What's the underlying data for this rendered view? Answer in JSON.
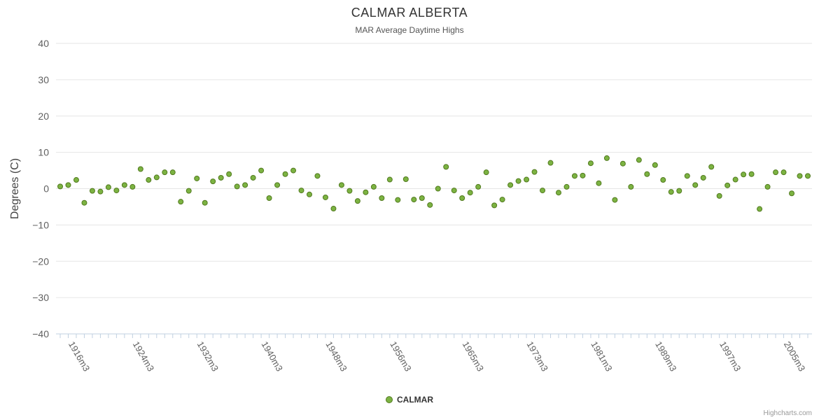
{
  "chart_data": {
    "type": "scatter",
    "title": "CALMAR ALBERTA",
    "subtitle": "MAR Average Daytime Highs",
    "ylabel": "Degrees (C)",
    "xlabel": "",
    "ylim": [
      -40,
      40
    ],
    "y_tick_step": 10,
    "grid": true,
    "legend_position": "bottom",
    "x_tick_labels": [
      {
        "year": 1916,
        "label": "1916m3"
      },
      {
        "year": 1924,
        "label": "1924m3"
      },
      {
        "year": 1932,
        "label": "1932m3"
      },
      {
        "year": 1940,
        "label": "1940m3"
      },
      {
        "year": 1948,
        "label": "1948m3"
      },
      {
        "year": 1956,
        "label": "1956m3"
      },
      {
        "year": 1965,
        "label": "1965m3"
      },
      {
        "year": 1973,
        "label": "1973m3"
      },
      {
        "year": 1981,
        "label": "1981m3"
      },
      {
        "year": 1989,
        "label": "1989m3"
      },
      {
        "year": 1997,
        "label": "1997m3"
      },
      {
        "year": 2005,
        "label": "2005m3"
      }
    ],
    "series": [
      {
        "name": "CALMAR",
        "color": "#7cb342",
        "border_color": "#527a1f",
        "years": [
          1915,
          1916,
          1917,
          1918,
          1919,
          1920,
          1921,
          1922,
          1923,
          1924,
          1925,
          1926,
          1927,
          1928,
          1929,
          1930,
          1931,
          1932,
          1933,
          1934,
          1935,
          1936,
          1937,
          1938,
          1939,
          1940,
          1941,
          1942,
          1943,
          1944,
          1945,
          1946,
          1947,
          1948,
          1949,
          1950,
          1951,
          1952,
          1953,
          1954,
          1955,
          1956,
          1957,
          1958,
          1959,
          1960,
          1961,
          1962,
          1963,
          1964,
          1965,
          1966,
          1967,
          1968,
          1969,
          1970,
          1971,
          1972,
          1973,
          1974,
          1975,
          1976,
          1977,
          1978,
          1979,
          1980,
          1981,
          1982,
          1983,
          1984,
          1985,
          1986,
          1987,
          1988,
          1989,
          1990,
          1991,
          1992,
          1993,
          1994,
          1995,
          1996,
          1997,
          1998,
          1999,
          2000,
          2001,
          2002,
          2003,
          2004,
          2005,
          2006,
          2007,
          2008
        ],
        "values": [
          0.6,
          1.0,
          2.4,
          -3.9,
          -0.6,
          -0.8,
          0.4,
          -0.5,
          1.0,
          0.5,
          5.4,
          2.4,
          3.1,
          4.5,
          4.5,
          -3.6,
          -0.6,
          2.8,
          -3.9,
          2.0,
          3.0,
          4.0,
          0.6,
          1.0,
          3.0,
          5.0,
          -2.6,
          1.0,
          4.0,
          5.0,
          -0.5,
          -1.6,
          3.5,
          -2.4,
          -5.5,
          1.0,
          -0.6,
          -3.4,
          -1.0,
          0.5,
          -2.6,
          2.5,
          -3.1,
          2.6,
          -3.0,
          -2.6,
          -4.5,
          0.0,
          6.0,
          -0.5,
          -2.6,
          -1.1,
          0.5,
          4.5,
          -4.6,
          -3.0,
          1.0,
          2.1,
          2.5,
          4.6,
          -0.5,
          7.1,
          -1.1,
          0.5,
          3.5,
          3.6,
          7.0,
          1.5,
          8.4,
          -3.1,
          6.9,
          0.5,
          7.9,
          4.0,
          6.5,
          2.4,
          -0.9,
          -0.6,
          3.5,
          1.0,
          3.0,
          6.0,
          -2.0,
          0.9,
          2.5,
          3.9,
          4.0,
          -5.6,
          0.5,
          4.5,
          4.5,
          -1.3,
          3.5,
          3.5
        ]
      }
    ]
  },
  "legend": {
    "label": "CALMAR"
  },
  "credits": "Highcharts.com",
  "colors": {
    "grid_line": "#e6e6e6",
    "axis_line": "#c0d0e0",
    "tick_mark": "#c0d0e0",
    "axis_label": "#606060",
    "axis_title": "#444444",
    "title": "#333333",
    "subtitle": "#555555",
    "credits": "#999999"
  }
}
